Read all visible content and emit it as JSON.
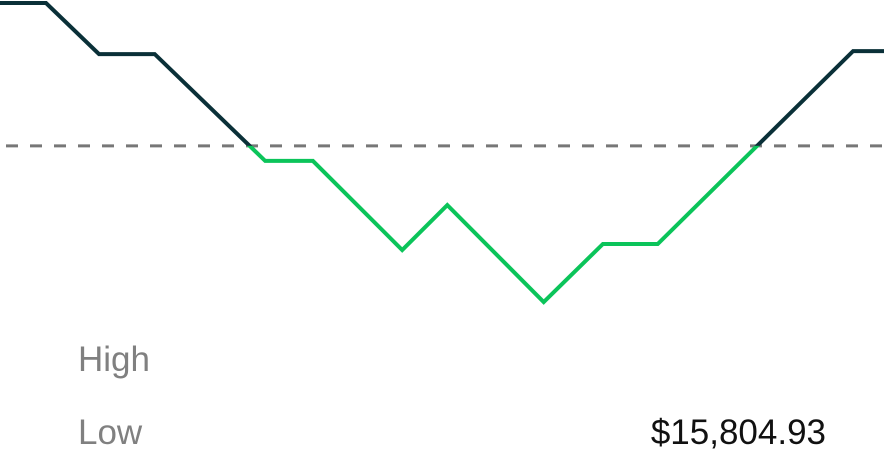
{
  "chart_data": {
    "type": "line",
    "title": "",
    "xlabel": "",
    "ylabel": "",
    "x": [
      0,
      5.2,
      11.2,
      17.5,
      30,
      35.4,
      45.5,
      50.6,
      61.5,
      68.2,
      74.4,
      96.5,
      100
    ],
    "values": [
      100,
      100,
      82.9,
      82.9,
      47.2,
      47.2,
      17.4,
      32.4,
      0,
      19.4,
      19.4,
      83.9,
      83.9
    ],
    "xlim": [
      0,
      100
    ],
    "ylim": [
      0,
      100
    ],
    "reference_line": 52.2,
    "grid": false,
    "axes_visible": false,
    "colors": {
      "above_reference": "#0a3038",
      "below_reference": "#0bc45a",
      "reference_line": "#777777"
    }
  },
  "stats": {
    "high_label": "High",
    "low_label": "Low",
    "low_value": "$15,804.93"
  }
}
